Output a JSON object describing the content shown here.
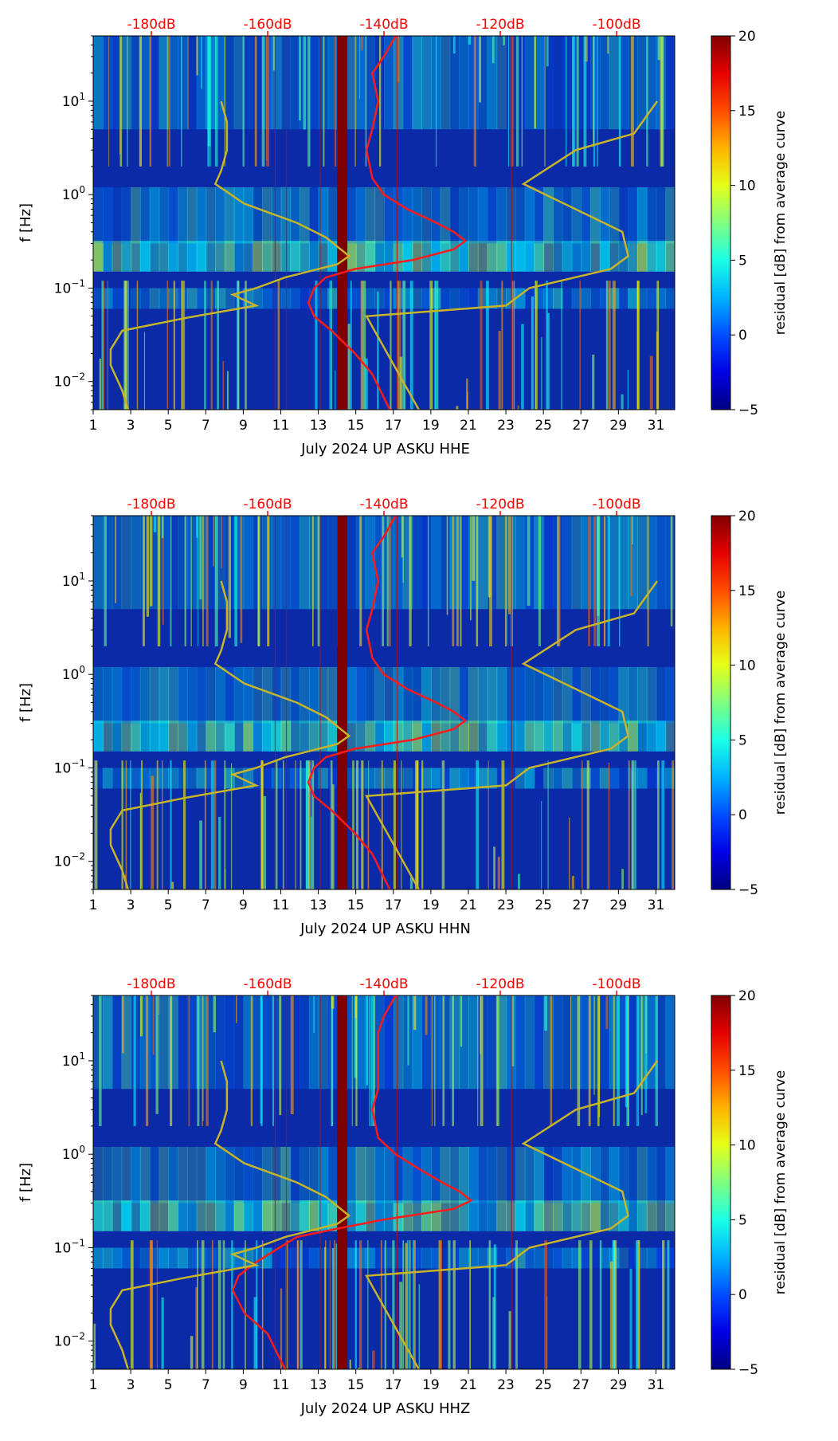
{
  "chart_data": [
    {
      "type": "heatmap",
      "title": "",
      "xlabel": "July 2024 UP ASKU  HHE",
      "ylabel": "f [Hz]",
      "x_ticks": [
        "1",
        "3",
        "5",
        "7",
        "9",
        "11",
        "13",
        "15",
        "17",
        "19",
        "21",
        "23",
        "25",
        "27",
        "29",
        "31"
      ],
      "x_range": [
        1,
        32
      ],
      "y_range_hz": [
        0.005,
        50
      ],
      "y_scale": "log",
      "y_ticks": [
        {
          "value": 0.01,
          "base": "10",
          "exp": "−2"
        },
        {
          "value": 0.1,
          "base": "10",
          "exp": "−1"
        },
        {
          "value": 1,
          "base": "10",
          "exp": "0"
        },
        {
          "value": 10,
          "base": "10",
          "exp": "1"
        }
      ],
      "top_axis_labels": [
        "-180dB",
        "-160dB",
        "-140dB",
        "-120dB",
        "-100dB"
      ],
      "top_axis_color": "#ff0000",
      "colorbar": {
        "label": "residual [dB] from average curve",
        "min": -5,
        "max": 20,
        "ticks": [
          "−5",
          "0",
          "5",
          "10",
          "15",
          "20"
        ]
      },
      "series": [
        {
          "name": "average PSD (red)",
          "color": "#ff1a1a",
          "points": [
            [
              -138,
              50
            ],
            [
              -140,
              30
            ],
            [
              -142,
              20
            ],
            [
              -141,
              10
            ],
            [
              -142,
              5
            ],
            [
              -143,
              3
            ],
            [
              -142,
              1.5
            ],
            [
              -140,
              1.0
            ],
            [
              -136,
              0.7
            ],
            [
              -131,
              0.5
            ],
            [
              -128,
              0.4
            ],
            [
              -126,
              0.32
            ],
            [
              -128,
              0.26
            ],
            [
              -135,
              0.2
            ],
            [
              -145,
              0.16
            ],
            [
              -150,
              0.13
            ],
            [
              -152,
              0.1
            ],
            [
              -153,
              0.07
            ],
            [
              -152,
              0.05
            ],
            [
              -149,
              0.035
            ],
            [
              -145,
              0.02
            ],
            [
              -142,
              0.012
            ],
            [
              -139,
              0.005
            ]
          ]
        },
        {
          "name": "noise model (yellow)",
          "color": "#c8b428",
          "points": [
            [
              -168,
              10
            ],
            [
              -167,
              6
            ],
            [
              -167,
              3
            ],
            [
              -168,
              1.8
            ],
            [
              -169,
              1.3
            ],
            [
              -164,
              0.8
            ],
            [
              -155,
              0.5
            ],
            [
              -150,
              0.35
            ],
            [
              -146,
              0.22
            ],
            [
              -148,
              0.18
            ],
            [
              -157,
              0.13
            ],
            [
              -162,
              0.1
            ],
            [
              -166,
              0.085
            ],
            [
              -162,
              0.065
            ],
            [
              -174,
              0.048
            ],
            [
              -185,
              0.035
            ],
            [
              -187,
              0.022
            ],
            [
              -187,
              0.015
            ],
            [
              -185,
              0.008
            ],
            [
              -184,
              0.005
            ]
          ]
        },
        {
          "name": "noise model (yellow, right)",
          "color": "#c8b428",
          "points": [
            [
              -93,
              10
            ],
            [
              -97,
              4.5
            ],
            [
              -107,
              3
            ],
            [
              -116,
              1.3
            ],
            [
              -99,
              0.4
            ],
            [
              -98,
              0.22
            ],
            [
              -101,
              0.16
            ],
            [
              -115,
              0.1
            ],
            [
              -119,
              0.065
            ],
            [
              -143,
              0.05
            ],
            [
              -134,
              0.005
            ]
          ]
        }
      ]
    },
    {
      "type": "heatmap",
      "title": "",
      "xlabel": "July 2024 UP ASKU  HHN",
      "ylabel": "f [Hz]",
      "x_ticks": [
        "1",
        "3",
        "5",
        "7",
        "9",
        "11",
        "13",
        "15",
        "17",
        "19",
        "21",
        "23",
        "25",
        "27",
        "29",
        "31"
      ],
      "x_range": [
        1,
        32
      ],
      "y_range_hz": [
        0.005,
        50
      ],
      "y_scale": "log",
      "y_ticks": [
        {
          "value": 0.01,
          "base": "10",
          "exp": "−2"
        },
        {
          "value": 0.1,
          "base": "10",
          "exp": "−1"
        },
        {
          "value": 1,
          "base": "10",
          "exp": "0"
        },
        {
          "value": 10,
          "base": "10",
          "exp": "1"
        }
      ],
      "top_axis_labels": [
        "-180dB",
        "-160dB",
        "-140dB",
        "-120dB",
        "-100dB"
      ],
      "top_axis_color": "#ff0000",
      "colorbar": {
        "label": "residual [dB] from average curve",
        "min": -5,
        "max": 20,
        "ticks": [
          "−5",
          "0",
          "5",
          "10",
          "15",
          "20"
        ]
      },
      "series": [
        {
          "name": "average PSD (red)",
          "color": "#ff1a1a",
          "points": [
            [
              -138,
              50
            ],
            [
              -140,
              30
            ],
            [
              -142,
              20
            ],
            [
              -141,
              10
            ],
            [
              -142,
              5
            ],
            [
              -143,
              3
            ],
            [
              -142,
              1.5
            ],
            [
              -140,
              1.0
            ],
            [
              -136,
              0.7
            ],
            [
              -131,
              0.5
            ],
            [
              -128,
              0.4
            ],
            [
              -126,
              0.32
            ],
            [
              -128,
              0.26
            ],
            [
              -135,
              0.2
            ],
            [
              -145,
              0.16
            ],
            [
              -150,
              0.13
            ],
            [
              -152,
              0.1
            ],
            [
              -153,
              0.07
            ],
            [
              -152,
              0.05
            ],
            [
              -149,
              0.035
            ],
            [
              -145,
              0.02
            ],
            [
              -142,
              0.012
            ],
            [
              -139,
              0.005
            ]
          ]
        },
        {
          "name": "noise model (yellow)",
          "color": "#c8b428",
          "points": [
            [
              -168,
              10
            ],
            [
              -167,
              6
            ],
            [
              -167,
              3
            ],
            [
              -168,
              1.8
            ],
            [
              -169,
              1.3
            ],
            [
              -164,
              0.8
            ],
            [
              -155,
              0.5
            ],
            [
              -150,
              0.35
            ],
            [
              -146,
              0.22
            ],
            [
              -148,
              0.18
            ],
            [
              -157,
              0.13
            ],
            [
              -162,
              0.1
            ],
            [
              -166,
              0.085
            ],
            [
              -162,
              0.065
            ],
            [
              -174,
              0.048
            ],
            [
              -185,
              0.035
            ],
            [
              -187,
              0.022
            ],
            [
              -187,
              0.015
            ],
            [
              -185,
              0.008
            ],
            [
              -184,
              0.005
            ]
          ]
        },
        {
          "name": "noise model (yellow, right)",
          "color": "#c8b428",
          "points": [
            [
              -93,
              10
            ],
            [
              -97,
              4.5
            ],
            [
              -107,
              3
            ],
            [
              -116,
              1.3
            ],
            [
              -99,
              0.4
            ],
            [
              -98,
              0.22
            ],
            [
              -101,
              0.16
            ],
            [
              -115,
              0.1
            ],
            [
              -119,
              0.065
            ],
            [
              -143,
              0.05
            ],
            [
              -134,
              0.005
            ]
          ]
        }
      ]
    },
    {
      "type": "heatmap",
      "title": "",
      "xlabel": "July 2024 UP ASKU  HHZ",
      "ylabel": "f [Hz]",
      "x_ticks": [
        "1",
        "3",
        "5",
        "7",
        "9",
        "11",
        "13",
        "15",
        "17",
        "19",
        "21",
        "23",
        "25",
        "27",
        "29",
        "31"
      ],
      "x_range": [
        1,
        32
      ],
      "y_range_hz": [
        0.005,
        50
      ],
      "y_scale": "log",
      "y_ticks": [
        {
          "value": 0.01,
          "base": "10",
          "exp": "−2"
        },
        {
          "value": 0.1,
          "base": "10",
          "exp": "−1"
        },
        {
          "value": 1,
          "base": "10",
          "exp": "0"
        },
        {
          "value": 10,
          "base": "10",
          "exp": "1"
        }
      ],
      "top_axis_labels": [
        "-180dB",
        "-160dB",
        "-140dB",
        "-120dB",
        "-100dB"
      ],
      "top_axis_color": "#ff0000",
      "colorbar": {
        "label": "residual [dB] from average curve",
        "min": -5,
        "max": 20,
        "ticks": [
          "−5",
          "0",
          "5",
          "10",
          "15",
          "20"
        ]
      },
      "series": [
        {
          "name": "average PSD (red)",
          "color": "#ff1a1a",
          "points": [
            [
              -138,
              50
            ],
            [
              -140,
              30
            ],
            [
              -141,
              20
            ],
            [
              -141,
              10
            ],
            [
              -141,
              5
            ],
            [
              -142,
              3
            ],
            [
              -141,
              1.5
            ],
            [
              -138,
              1.0
            ],
            [
              -134,
              0.7
            ],
            [
              -130,
              0.5
            ],
            [
              -127,
              0.4
            ],
            [
              -125,
              0.32
            ],
            [
              -128,
              0.26
            ],
            [
              -140,
              0.2
            ],
            [
              -148,
              0.16
            ],
            [
              -155,
              0.13
            ],
            [
              -158,
              0.1
            ],
            [
              -162,
              0.07
            ],
            [
              -165,
              0.05
            ],
            [
              -166,
              0.035
            ],
            [
              -164,
              0.02
            ],
            [
              -160,
              0.012
            ],
            [
              -157,
              0.005
            ]
          ]
        },
        {
          "name": "noise model (yellow)",
          "color": "#c8b428",
          "points": [
            [
              -168,
              10
            ],
            [
              -167,
              6
            ],
            [
              -167,
              3
            ],
            [
              -168,
              1.8
            ],
            [
              -169,
              1.3
            ],
            [
              -164,
              0.8
            ],
            [
              -155,
              0.5
            ],
            [
              -150,
              0.35
            ],
            [
              -146,
              0.22
            ],
            [
              -148,
              0.18
            ],
            [
              -157,
              0.13
            ],
            [
              -162,
              0.1
            ],
            [
              -166,
              0.085
            ],
            [
              -162,
              0.065
            ],
            [
              -174,
              0.048
            ],
            [
              -185,
              0.035
            ],
            [
              -187,
              0.022
            ],
            [
              -187,
              0.015
            ],
            [
              -185,
              0.008
            ],
            [
              -184,
              0.005
            ]
          ]
        },
        {
          "name": "noise model (yellow, right)",
          "color": "#c8b428",
          "points": [
            [
              -93,
              10
            ],
            [
              -97,
              4.5
            ],
            [
              -107,
              3
            ],
            [
              -116,
              1.3
            ],
            [
              -99,
              0.4
            ],
            [
              -98,
              0.22
            ],
            [
              -101,
              0.16
            ],
            [
              -115,
              0.1
            ],
            [
              -119,
              0.065
            ],
            [
              -143,
              0.05
            ],
            [
              -134,
              0.005
            ]
          ]
        }
      ]
    }
  ]
}
